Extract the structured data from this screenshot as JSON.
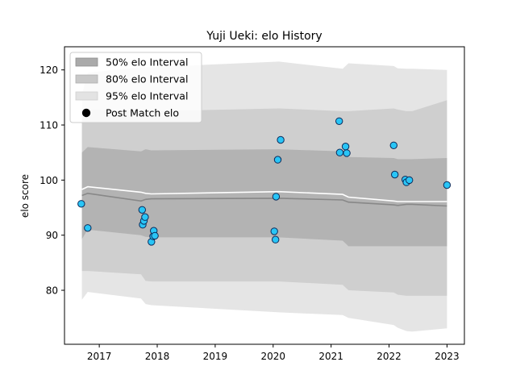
{
  "chart_data": {
    "type": "area",
    "title": "Yuji Ueki: elo History",
    "xlabel": "",
    "ylabel": "elo score",
    "x_ticks": [
      "2017",
      "2018",
      "2019",
      "2020",
      "2021",
      "2022",
      "2023"
    ],
    "x_tick_values": [
      2017,
      2018,
      2019,
      2020,
      2021,
      2022,
      2023
    ],
    "y_ticks": [
      "80",
      "90",
      "100",
      "110",
      "120"
    ],
    "y_tick_values": [
      80,
      90,
      100,
      110,
      120
    ],
    "xlim": [
      2016.4,
      2023.3
    ],
    "ylim": [
      70.2,
      124.2
    ],
    "legend_position": "top-left",
    "legend": [
      {
        "label": "50% elo Interval",
        "key": "band50"
      },
      {
        "label": "80% elo Interval",
        "key": "band80"
      },
      {
        "label": "95% elo Interval",
        "key": "band95"
      },
      {
        "label": "Post Match elo",
        "key": "points"
      }
    ],
    "colors": {
      "band50": "#b3b3b3",
      "band80": "#cfcfcf",
      "band95": "#e5e5e5",
      "mean_line": "#888888",
      "median_line": "#ffffff",
      "point_fill": "#29c5f6",
      "point_edge": "#0b2a5a"
    },
    "bands": {
      "x": [
        2016.7,
        2016.8,
        2017.72,
        2017.8,
        2017.9,
        2020.1,
        2021.2,
        2021.3,
        2022.08,
        2022.15,
        2022.3,
        2022.4,
        2023.0
      ],
      "mean": [
        97.2,
        97.6,
        96.2,
        96.5,
        96.6,
        96.7,
        96.4,
        96.0,
        95.5,
        95.4,
        95.6,
        95.6,
        95.3
      ],
      "median": [
        98.3,
        98.8,
        97.8,
        97.6,
        97.5,
        97.9,
        97.4,
        96.9,
        96.2,
        96.1,
        96.1,
        96.1,
        96.1
      ],
      "p50_low": [
        89.3,
        91.0,
        90.0,
        89.7,
        89.6,
        89.6,
        89.0,
        88.0,
        88.0,
        88.0,
        88.0,
        88.0,
        88.0
      ],
      "p50_high": [
        105.0,
        106.0,
        105.2,
        105.6,
        105.4,
        105.6,
        105.2,
        104.2,
        104.0,
        103.8,
        103.8,
        103.8,
        104.0
      ],
      "p80_low": [
        83.5,
        83.5,
        82.9,
        81.7,
        81.6,
        81.6,
        81.0,
        80.0,
        79.6,
        79.2,
        79.0,
        79.0,
        79.0
      ],
      "p80_high": [
        111.0,
        112.8,
        112.5,
        112.5,
        112.5,
        113.0,
        112.5,
        112.5,
        113.0,
        112.8,
        112.5,
        112.5,
        114.5
      ],
      "p95_low": [
        78.3,
        79.7,
        78.5,
        77.5,
        77.3,
        76.0,
        75.5,
        75.0,
        73.7,
        73.2,
        72.6,
        72.5,
        73.1
      ],
      "p95_high": [
        115.5,
        119.5,
        120.5,
        120.5,
        120.5,
        121.5,
        120.2,
        121.2,
        120.7,
        120.3,
        120.2,
        120.2,
        120.0
      ]
    },
    "points": {
      "x": [
        2016.69,
        2016.8,
        2017.74,
        2017.75,
        2017.77,
        2017.79,
        2017.9,
        2017.93,
        2017.94,
        2017.96,
        2020.02,
        2020.04,
        2020.05,
        2020.08,
        2020.13,
        2021.14,
        2021.15,
        2021.25,
        2021.27,
        2022.08,
        2022.1,
        2022.28,
        2022.3,
        2022.35,
        2023.0
      ],
      "y": [
        95.7,
        91.3,
        94.6,
        91.9,
        92.6,
        93.3,
        88.8,
        89.8,
        90.8,
        89.9,
        90.7,
        89.2,
        97.0,
        103.7,
        107.3,
        110.7,
        105.0,
        106.1,
        104.9,
        106.3,
        101.0,
        100.1,
        99.6,
        100.0,
        99.1
      ]
    }
  }
}
